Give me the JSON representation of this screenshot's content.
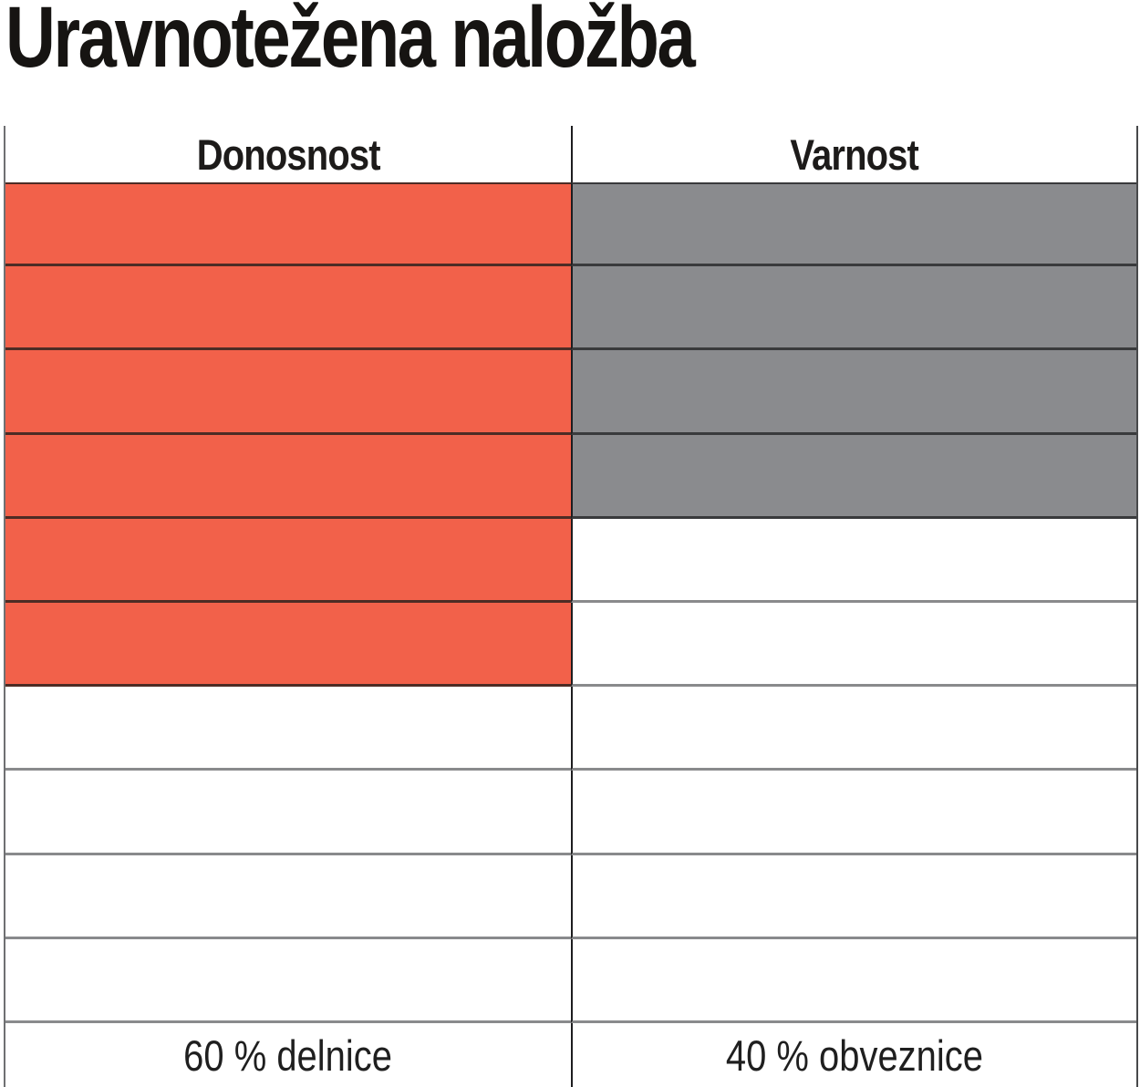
{
  "title": "Uravnotežena naložba",
  "table": {
    "columns": [
      {
        "header": "Donosnost",
        "footer": "60 % delnice"
      },
      {
        "header": "Varnost",
        "footer": "40 % obveznice"
      }
    ]
  },
  "chart_data": {
    "type": "table",
    "title": "Uravnotežena naložba",
    "columns": [
      "Donosnost",
      "Varnost"
    ],
    "total_rows": 10,
    "series": [
      {
        "name": "delnice",
        "column": "Donosnost",
        "label": "60 % delnice",
        "percent": 60,
        "filled_rows": 6,
        "color": "#F2614A"
      },
      {
        "name": "obveznice",
        "column": "Varnost",
        "label": "40 % obveznice",
        "percent": 40,
        "filled_rows": 4,
        "color": "#8A8B8E"
      }
    ],
    "legend_position": "bottom",
    "grid": "on"
  },
  "colors": {
    "stocks_red": "#F2614A",
    "bonds_gray": "#8A8B8E",
    "divider_black": "#1d1d1f",
    "line_gray": "#898a8c"
  }
}
